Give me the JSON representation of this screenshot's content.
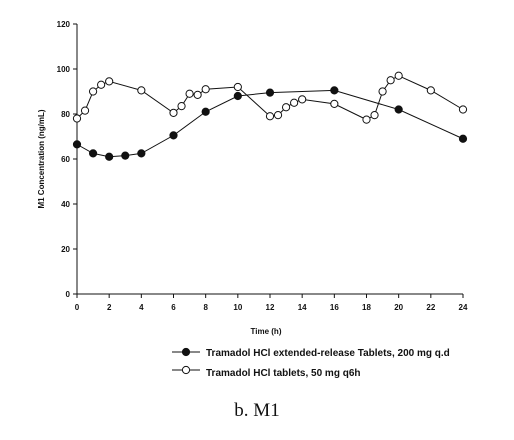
{
  "chart_data": {
    "type": "line",
    "xlabel": "Time (h)",
    "ylabel": "M1 Concentration (ng/mL)",
    "xlim": [
      0,
      24
    ],
    "ylim": [
      0,
      120
    ],
    "x_ticks": [
      0,
      2,
      4,
      6,
      8,
      10,
      12,
      14,
      16,
      18,
      20,
      22,
      24
    ],
    "y_ticks": [
      0,
      20,
      40,
      60,
      80,
      100,
      120
    ],
    "grid": false,
    "legend_position": "bottom",
    "series": [
      {
        "name": "Tramadol HCl extended-release Tablets, 200 mg q.d",
        "marker": "filled-circle",
        "x": [
          0,
          1,
          2,
          3,
          4,
          6,
          8,
          10,
          12,
          16,
          20,
          24
        ],
        "y": [
          66.5,
          62.5,
          61,
          61.5,
          62.5,
          70.5,
          81,
          88,
          89.5,
          90.5,
          82,
          69
        ]
      },
      {
        "name": "Tramadol HCl tablets, 50 mg q6h",
        "marker": "open-circle",
        "x": [
          0,
          0.5,
          1,
          1.5,
          2,
          4,
          6,
          6.5,
          7,
          7.5,
          8,
          10,
          12,
          12.5,
          13,
          13.5,
          14,
          16,
          18,
          18.5,
          19,
          19.5,
          20,
          22,
          24
        ],
        "y": [
          78,
          81.5,
          90,
          93,
          94.5,
          90.5,
          80.5,
          83.5,
          89,
          88.5,
          91,
          92,
          79,
          79.5,
          83,
          85,
          86.5,
          84.5,
          77.5,
          79.5,
          90,
          95,
          97,
          90.5,
          82
        ]
      }
    ]
  },
  "caption": "b. M1"
}
